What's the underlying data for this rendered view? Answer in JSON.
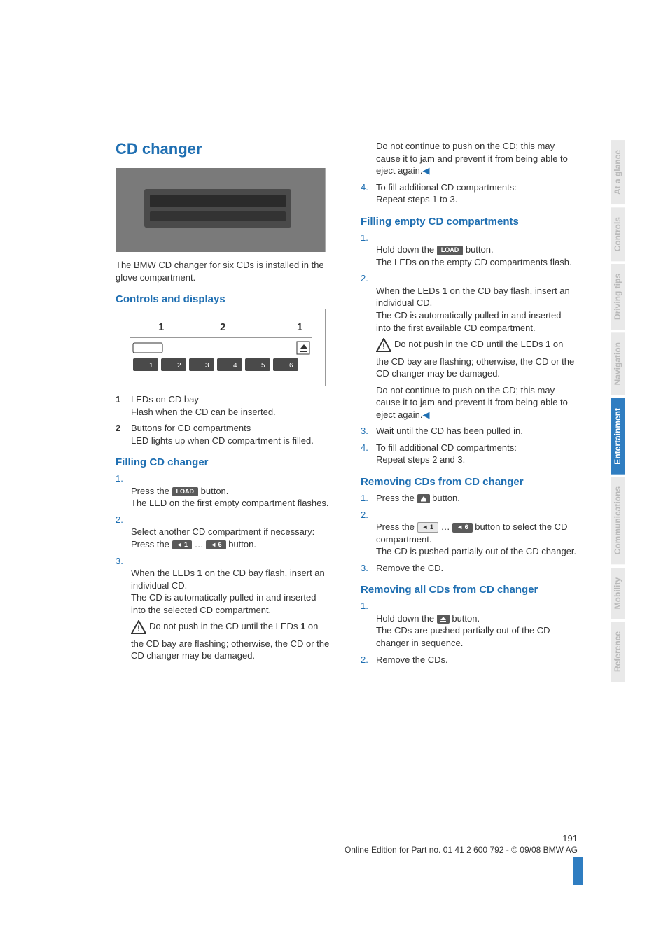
{
  "colors": {
    "heading_blue": "#1f6fb2",
    "body_text": "#333333",
    "tab_active_bg": "#2f7dc1",
    "tab_active_fg": "#ffffff",
    "tab_inactive_bg": "#e9e9e9",
    "tab_inactive_fg": "#b9b9b9",
    "chip_bg": "#5a5a5a",
    "chip_fg": "#ffffff",
    "arrow_blue": "#1f6fb2",
    "footer_bar": "#2f7dc1"
  },
  "left": {
    "title": "CD changer",
    "intro": "The BMW CD changer for six CDs is installed in the glove compartment.",
    "controls_heading": "Controls and displays",
    "legend": [
      {
        "num": "1",
        "text": "LEDs on CD bay\nFlash when the CD can be inserted."
      },
      {
        "num": "2",
        "text": "Buttons for CD compartments\nLED lights up when CD compartment is filled."
      }
    ],
    "filling_heading": "Filling CD changer",
    "filling": [
      {
        "num": "1.",
        "pre": "Press the ",
        "chip": "LOAD",
        "post": " button.\nThe LED on the first empty compartment flashes."
      },
      {
        "num": "2.",
        "pre": "Select another CD compartment if necessary:\nPress the ",
        "chip1": "◄ 1",
        "mid": " … ",
        "chip2": "◄ 6",
        "post": " button."
      },
      {
        "num": "3.",
        "text": "When the LEDs 1 on the CD bay flash, insert an individual CD.\nThe CD is automatically pulled in and inserted into the selected CD compartment."
      }
    ],
    "warning": "Do not push in the CD until the LEDs 1 on the CD bay are flashing; otherwise, the CD or the CD changer may be damaged."
  },
  "right": {
    "cont": "Do not continue to push on the CD; this may cause it to jam and prevent it from being able to eject again.",
    "step4": {
      "num": "4.",
      "text": "To fill additional CD compartments:\nRepeat steps 1 to 3."
    },
    "empty_heading": "Filling empty CD compartments",
    "empty": [
      {
        "num": "1.",
        "pre": "Hold down the ",
        "chip": "LOAD",
        "post": " button.\nThe LEDs on the empty CD compartments flash."
      },
      {
        "num": "2.",
        "text": "When the LEDs 1 on the CD bay flash, insert an individual CD.\nThe CD is automatically pulled in and inserted into the first available CD compartment."
      }
    ],
    "warning1": "Do not push in the CD until the LEDs 1 on the CD bay are flashing; otherwise, the CD or the CD changer may be damaged.",
    "warning2": "Do not continue to push on the CD; this may cause it to jam and prevent it from being able to eject again.",
    "empty_tail": [
      {
        "num": "3.",
        "text": "Wait until the CD has been pulled in."
      },
      {
        "num": "4.",
        "text": "To fill additional CD compartments:\nRepeat steps 2 and 3."
      }
    ],
    "remove_heading": "Removing CDs from CD changer",
    "remove": [
      {
        "num": "1.",
        "pre": "Press the ",
        "chip_eject": true,
        "post": " button."
      },
      {
        "num": "2.",
        "pre": "Press the ",
        "chip1": "◄ 1",
        "mid": " … ",
        "chip2": "◄ 6",
        "post": " button to select the CD compartment.\nThe CD is pushed partially out of the CD changer."
      },
      {
        "num": "3.",
        "text": "Remove the CD."
      }
    ],
    "remove_all_heading": "Removing all CDs from CD changer",
    "remove_all": [
      {
        "num": "1.",
        "pre": "Hold down the ",
        "chip_eject": true,
        "post": " button.\nThe CDs are pushed partially out of the CD changer in sequence."
      },
      {
        "num": "2.",
        "text": "Remove the CDs."
      }
    ]
  },
  "tabs": [
    {
      "label": "At a glance",
      "active": false
    },
    {
      "label": "Controls",
      "active": false
    },
    {
      "label": "Driving tips",
      "active": false
    },
    {
      "label": "Navigation",
      "active": false
    },
    {
      "label": "Entertainment",
      "active": true
    },
    {
      "label": "Communications",
      "active": false
    },
    {
      "label": "Mobility",
      "active": false
    },
    {
      "label": "Reference",
      "active": false
    }
  ],
  "footer": {
    "page": "191",
    "line": "Online Edition for Part no. 01 41 2 600 792 - © 09/08 BMW AG"
  },
  "diagram": {
    "labels": [
      "1",
      "2",
      "1"
    ],
    "slots": [
      "1",
      "2",
      "3",
      "4",
      "5",
      "6"
    ]
  }
}
